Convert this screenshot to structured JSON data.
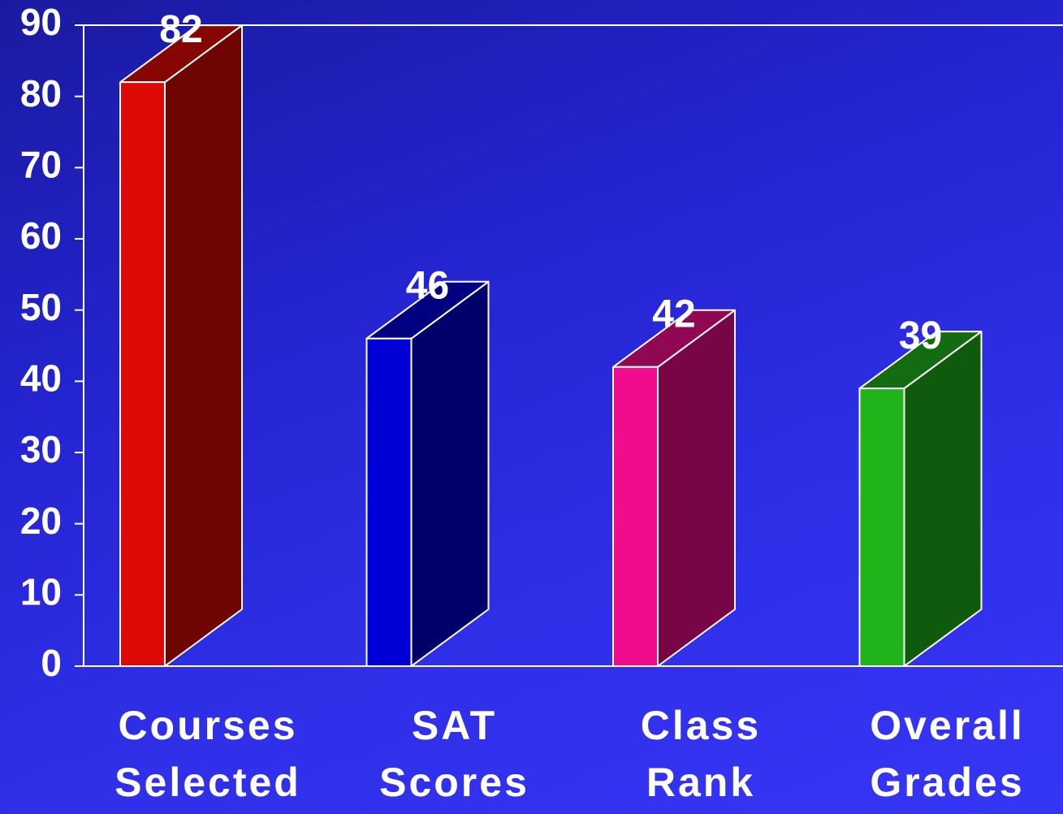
{
  "chart_data": {
    "type": "bar3d",
    "categories": [
      "Courses Selected",
      "SAT Scores",
      "Class Rank",
      "Overall Grades"
    ],
    "values": [
      82,
      46,
      42,
      39
    ],
    "colors": [
      "#dd0a05",
      "#0000d6",
      "#f00c8c",
      "#20b41a"
    ],
    "ylim": [
      0,
      90
    ],
    "yticks": [
      0,
      10,
      20,
      30,
      40,
      50,
      60,
      70,
      80,
      90
    ],
    "grid": false
  }
}
